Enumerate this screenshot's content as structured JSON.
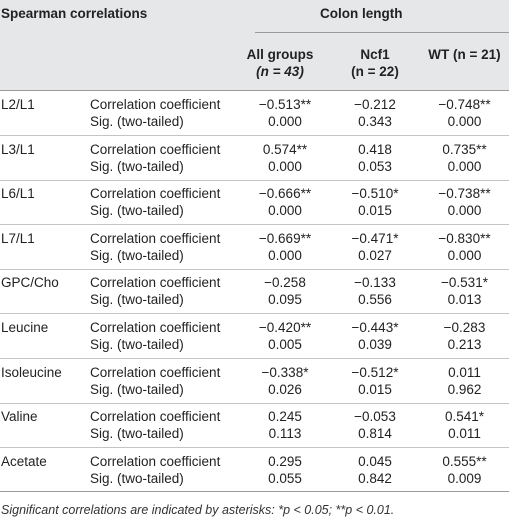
{
  "header": {
    "spearman": "Spearman correlations",
    "colon_length": "Colon length",
    "col_all": "All groups",
    "col_all_n": "(n = 43)",
    "col_ncf1": "Ncf1",
    "col_ncf1_n": "(n = 22)",
    "col_wt": "WT (n = 21)"
  },
  "rows": [
    {
      "name": "L2/L1",
      "l1": "Correlation coefficient",
      "l2": "Sig. (two-tailed)",
      "all": [
        "−0.513**",
        "0.000"
      ],
      "ncf1": [
        "−0.212",
        "0.343"
      ],
      "wt": [
        "−0.748**",
        "0.000"
      ]
    },
    {
      "name": "L3/L1",
      "l1": "Correlation coefficient",
      "l2": "Sig. (two-tailed)",
      "all": [
        "0.574**",
        "0.000"
      ],
      "ncf1": [
        "0.418",
        "0.053"
      ],
      "wt": [
        "0.735**",
        "0.000"
      ]
    },
    {
      "name": "L6/L1",
      "l1": "Correlation coefficient",
      "l2": "Sig. (two-tailed)",
      "all": [
        "−0.666**",
        "0.000"
      ],
      "ncf1": [
        "−0.510*",
        "0.015"
      ],
      "wt": [
        "−0.738**",
        "0.000"
      ]
    },
    {
      "name": "L7/L1",
      "l1": "Correlation coefficient",
      "l2": "Sig. (two-tailed)",
      "all": [
        "−0.669**",
        "0.000"
      ],
      "ncf1": [
        "−0.471*",
        "0.027"
      ],
      "wt": [
        "−0.830**",
        "0.000"
      ]
    },
    {
      "name": "GPC/Cho",
      "l1": "Correlation coefficient",
      "l2": "Sig. (two-tailed)",
      "all": [
        "−0.258",
        "0.095"
      ],
      "ncf1": [
        "−0.133",
        "0.556"
      ],
      "wt": [
        "−0.531*",
        "0.013"
      ]
    },
    {
      "name": "Leucine",
      "l1": "Correlation coefficient",
      "l2": "Sig. (two-tailed)",
      "all": [
        "−0.420**",
        "0.005"
      ],
      "ncf1": [
        "−0.443*",
        "0.039"
      ],
      "wt": [
        "−0.283",
        "0.213"
      ]
    },
    {
      "name": "Isoleucine",
      "l1": "Correlation coefficient",
      "l2": "Sig. (two-tailed)",
      "all": [
        "−0.338*",
        "0.026"
      ],
      "ncf1": [
        "−0.512*",
        "0.015"
      ],
      "wt": [
        "0.011",
        "0.962"
      ]
    },
    {
      "name": "Valine",
      "l1": "Correlation coefficient",
      "l2": "Sig. (two-tailed)",
      "all": [
        "0.245",
        "0.113"
      ],
      "ncf1": [
        "−0.053",
        "0.814"
      ],
      "wt": [
        "0.541*",
        "0.011"
      ]
    },
    {
      "name": "Acetate",
      "l1": "Correlation coefficient",
      "l2": "Sig. (two-tailed)",
      "all": [
        "0.295",
        "0.055"
      ],
      "ncf1": [
        "0.045",
        "0.842"
      ],
      "wt": [
        "0.555**",
        "0.009"
      ]
    }
  ],
  "footnote": "Significant correlations are indicated by asterisks: *p < 0.05; **p < 0.01."
}
